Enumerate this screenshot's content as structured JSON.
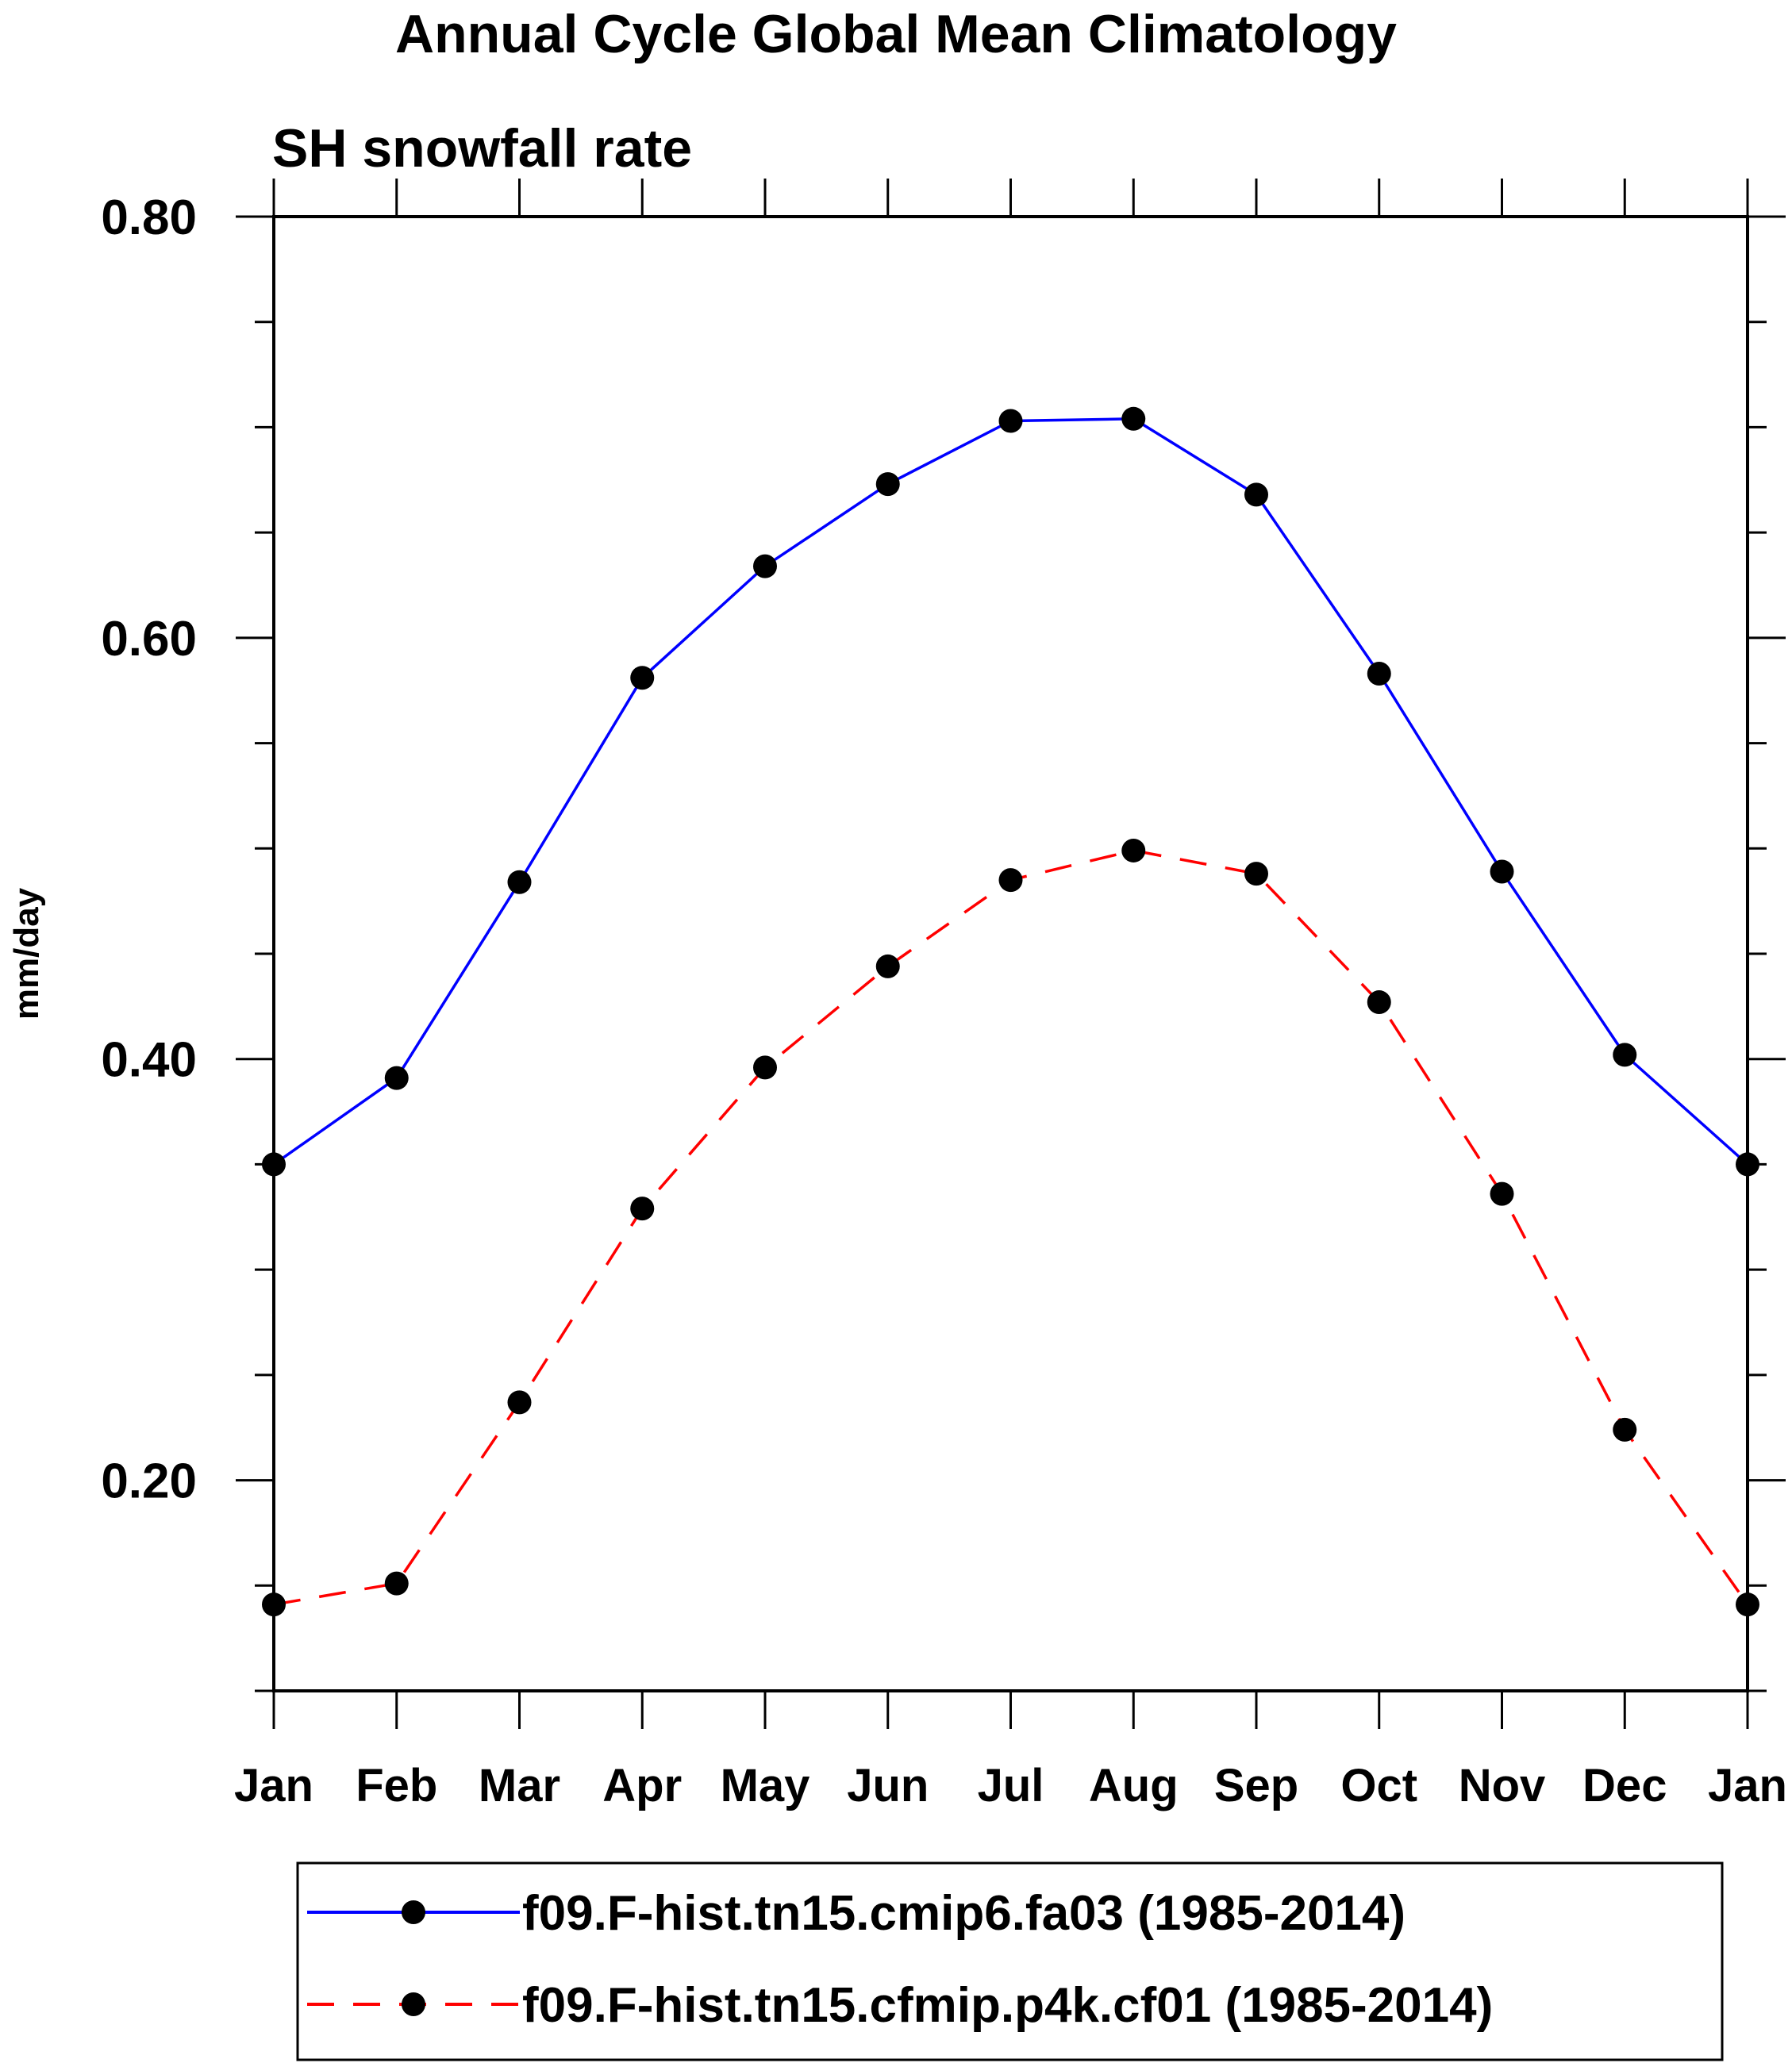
{
  "chart_data": {
    "type": "line",
    "title": "Annual Cycle Global Mean Climatology",
    "subtitle": "SH snowfall rate",
    "xlabel": "",
    "ylabel": "mm/day",
    "categories": [
      "Jan",
      "Feb",
      "Mar",
      "Apr",
      "May",
      "Jun",
      "Jul",
      "Aug",
      "Sep",
      "Oct",
      "Nov",
      "Dec",
      "Jan"
    ],
    "ylim": [
      0.1,
      0.8
    ],
    "y_ticks_major": [
      0.2,
      0.4,
      0.6,
      0.8
    ],
    "y_tick_labels": [
      "0.20",
      "0.40",
      "0.60",
      "0.80"
    ],
    "y_ticks_minor": [
      0.1,
      0.15,
      0.25,
      0.3,
      0.35,
      0.45,
      0.5,
      0.55,
      0.65,
      0.7,
      0.75
    ],
    "grid": false,
    "legend_position": "bottom",
    "series": [
      {
        "name": "f09.F-hist.tn15.cmip6.fa03 (1985-2014)",
        "color": "#0000ff",
        "dash": "solid",
        "marker": "filled-circle",
        "values": [
          0.35,
          0.391,
          0.484,
          0.581,
          0.634,
          0.673,
          0.703,
          0.704,
          0.668,
          0.583,
          0.489,
          0.402,
          0.35
        ]
      },
      {
        "name": "f09.F-hist.tn15.cfmip.p4k.cf01 (1985-2014)",
        "color": "#ff0000",
        "dash": "dashed",
        "marker": "filled-circle",
        "values": [
          0.141,
          0.151,
          0.237,
          0.329,
          0.396,
          0.444,
          0.485,
          0.499,
          0.488,
          0.427,
          0.336,
          0.224,
          0.141
        ]
      }
    ]
  }
}
